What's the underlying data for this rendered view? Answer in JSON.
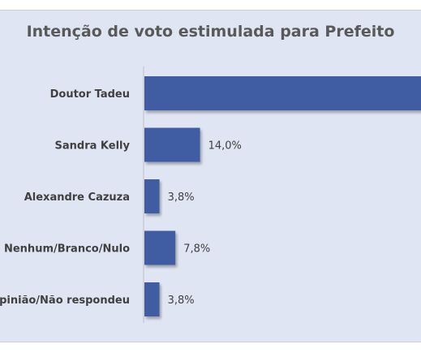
{
  "chart_data": {
    "type": "bar",
    "orientation": "horizontal",
    "title": "Intenção de voto estimulada para Prefeito",
    "categories": [
      "Doutor Tadeu",
      "Sandra Kelly",
      "Alexandre Cazuza",
      "Nenhum/Branco/Nulo",
      "Sem opinião/Não respondeu"
    ],
    "values": [
      70.6,
      14.0,
      3.8,
      7.8,
      3.8
    ],
    "value_labels": [
      "",
      "14,0%",
      "3,8%",
      "7,8%",
      "3,8%"
    ],
    "bar_color": "#3f5ba3",
    "xlim": [
      0,
      75
    ],
    "grid": false,
    "legend": "none"
  }
}
